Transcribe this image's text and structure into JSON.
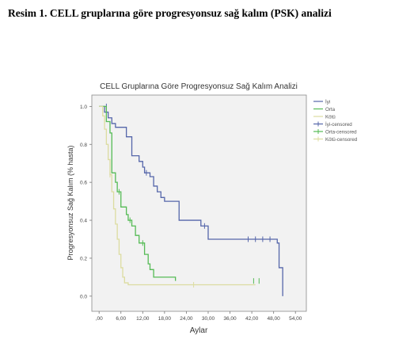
{
  "caption": "Resim 1. CELL gruplarına göre progresyonsuz sağ kalım (PSK) analizi",
  "chart_data": {
    "type": "line",
    "subtype": "kaplan-meier-step",
    "title": "CELL Gruplarına Göre Progresyonsuz Sağ Kalım Analizi",
    "xlabel": "Aylar",
    "ylabel": "Progresyonsuz Sağ Kalım (% hasta)",
    "xlim": [
      -2,
      57
    ],
    "ylim": [
      -0.08,
      1.06
    ],
    "x_ticks": [
      0,
      6,
      12,
      18,
      24,
      30,
      36,
      42,
      48,
      54
    ],
    "x_tick_labels": [
      ",00",
      "6,00",
      "12,00",
      "18,00",
      "24,00",
      "30,00",
      "36,00",
      "42,00",
      "48,00",
      "54,00"
    ],
    "y_ticks": [
      0,
      0.2,
      0.4,
      0.6,
      0.8,
      1.0
    ],
    "y_tick_labels": [
      "0.0",
      "0.2",
      "0.4",
      "0.6",
      "0.8",
      "1.0"
    ],
    "plot_background": "#f2f2f2",
    "legend_position": "right",
    "legend": [
      {
        "label": "İyi",
        "color": "#5566aa",
        "kind": "line"
      },
      {
        "label": "Orta",
        "color": "#55bb55",
        "kind": "line"
      },
      {
        "label": "Kötü",
        "color": "#dcdca0",
        "kind": "line"
      },
      {
        "label": "İyi-censored",
        "color": "#5566aa",
        "kind": "censor"
      },
      {
        "label": "Orta-censored",
        "color": "#55bb55",
        "kind": "censor"
      },
      {
        "label": "Kötü-censored",
        "color": "#dcdca0",
        "kind": "censor"
      }
    ],
    "series": [
      {
        "name": "İyi",
        "color": "#5566aa",
        "x": [
          0,
          1.5,
          2.5,
          3.5,
          4.5,
          7.5,
          9,
          11,
          12,
          12.5,
          14,
          15,
          16,
          17,
          18,
          22,
          28,
          30,
          49,
          49.5,
          50.5
        ],
        "y": [
          1.0,
          0.97,
          0.94,
          0.91,
          0.89,
          0.84,
          0.74,
          0.71,
          0.68,
          0.65,
          0.63,
          0.58,
          0.55,
          0.52,
          0.5,
          0.4,
          0.37,
          0.3,
          0.28,
          0.15,
          0.0
        ],
        "censored": [
          [
            2,
            1.0
          ],
          [
            13,
            0.65
          ],
          [
            29,
            0.37
          ],
          [
            41,
            0.3
          ],
          [
            43,
            0.3
          ],
          [
            45,
            0.3
          ],
          [
            47,
            0.3
          ]
        ]
      },
      {
        "name": "Orta",
        "color": "#55bb55",
        "x": [
          0,
          2,
          3,
          3.5,
          4.5,
          5,
          6,
          7.5,
          8,
          9,
          10,
          11,
          12.5,
          13.5,
          14,
          15,
          21
        ],
        "y": [
          1.0,
          0.92,
          0.86,
          0.65,
          0.6,
          0.55,
          0.47,
          0.43,
          0.4,
          0.37,
          0.32,
          0.28,
          0.22,
          0.17,
          0.14,
          0.1,
          0.08
        ],
        "censored": [
          [
            5.5,
            0.55
          ],
          [
            8.5,
            0.4
          ],
          [
            12,
            0.28
          ],
          [
            42.5,
            0.08
          ],
          [
            44,
            0.08
          ]
        ]
      },
      {
        "name": "Kötü",
        "color": "#dcdca0",
        "x": [
          0,
          1,
          1.5,
          2,
          2.5,
          3,
          3.5,
          4,
          4.5,
          5,
          5.5,
          6,
          6.5,
          7,
          8,
          43
        ],
        "y": [
          1.0,
          0.95,
          0.88,
          0.8,
          0.72,
          0.64,
          0.55,
          0.46,
          0.38,
          0.3,
          0.22,
          0.15,
          0.1,
          0.07,
          0.06,
          0.06
        ],
        "censored": [
          [
            3,
            0.64
          ],
          [
            26,
            0.06
          ]
        ]
      }
    ]
  }
}
